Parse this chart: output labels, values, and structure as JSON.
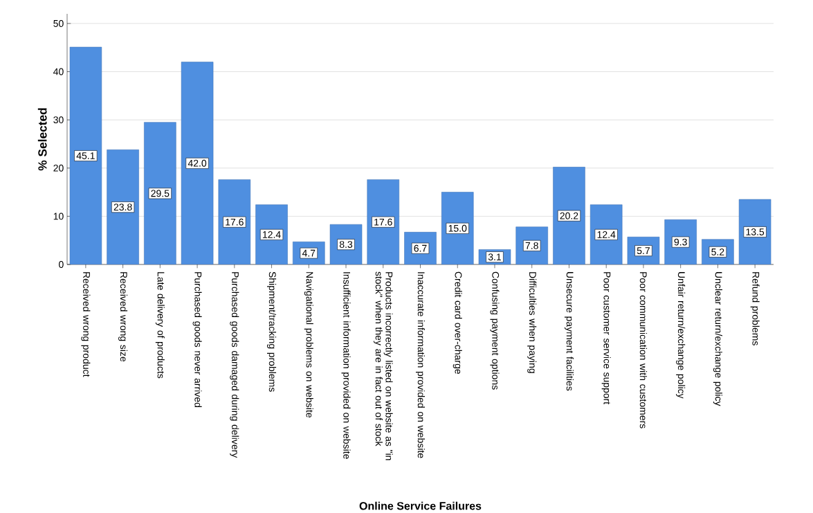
{
  "chart_data": {
    "type": "bar",
    "xlabel": "Online Service Failures",
    "ylabel": "% Selected",
    "categories": [
      "Received wrong product",
      "Received wrong size",
      "Late delivery of products",
      "Purchased goods never arrived",
      "Purchased goods damaged during delivery",
      "Shipment/tracking problems",
      "Navigational problems on website",
      "Insufficient information provided on website",
      "Products incorrectly listed on website as \"in stock\" when they are in fact out of stock",
      "Inaccurate information provided on website",
      "Credit card over-charge",
      "Confusing payment options",
      "Difficulties when paying",
      "Unsecure payment facilities",
      "Poor customer service support",
      "Poor communication with customers",
      "Unfair return/exchange policy",
      "Unclear return/exchange policy",
      "Refund problems"
    ],
    "values": [
      45.1,
      23.8,
      29.5,
      42.0,
      17.6,
      12.4,
      4.7,
      8.3,
      17.6,
      6.7,
      15.0,
      3.1,
      7.8,
      20.2,
      12.4,
      5.7,
      9.3,
      5.2,
      13.5
    ],
    "value_labels": [
      "45.1",
      "23.8",
      "29.5",
      "42.0",
      "17.6",
      "12.4",
      "4.7",
      "8.3",
      "17.6",
      "6.7",
      "15.0",
      "3.1",
      "7.8",
      "20.2",
      "12.4",
      "5.7",
      "9.3",
      "5.2",
      "13.5"
    ],
    "color": "#4f8fe0",
    "ylim": [
      0,
      52
    ],
    "yticks": [
      0,
      10,
      20,
      30,
      40,
      50
    ],
    "grid": "y"
  }
}
